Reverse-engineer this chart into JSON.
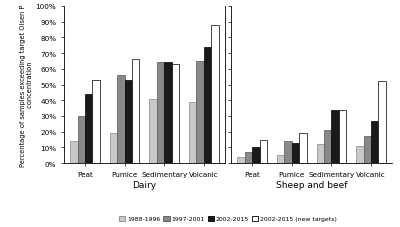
{
  "title": "",
  "ylabel": "Percentage of samples exceeding target Olsen P\n concentration",
  "groups": [
    "Peat",
    "Pumice",
    "Sedimentary",
    "Volcanic"
  ],
  "sections": [
    "Dairy",
    "Sheep and beef"
  ],
  "series": [
    "1988-1996",
    "1997-2001",
    "2002-2015",
    "2002-2015 (new targets)"
  ],
  "colors": [
    "#c8c8c8",
    "#888888",
    "#1a1a1a",
    "#ffffff"
  ],
  "edge_colors": [
    "#888888",
    "#555555",
    "#000000",
    "#000000"
  ],
  "dairy": {
    "Peat": [
      14,
      30,
      44,
      53
    ],
    "Pumice": [
      19,
      56,
      53,
      66
    ],
    "Sedimentary": [
      41,
      64,
      64,
      63
    ],
    "Volcanic": [
      39,
      65,
      74,
      88
    ]
  },
  "sheep_beef": {
    "Peat": [
      4,
      7,
      10,
      15
    ],
    "Pumice": [
      5,
      14,
      13,
      19
    ],
    "Sedimentary": [
      12,
      21,
      34,
      34
    ],
    "Volcanic": [
      11,
      17,
      27,
      52
    ]
  },
  "ylim": [
    0,
    100
  ],
  "yticks": [
    0,
    10,
    20,
    30,
    40,
    50,
    60,
    70,
    80,
    90,
    100
  ],
  "ytick_labels": [
    "0%",
    "10%",
    "20%",
    "30%",
    "40%",
    "50%",
    "60%",
    "70%",
    "80%",
    "90%",
    "100%"
  ]
}
